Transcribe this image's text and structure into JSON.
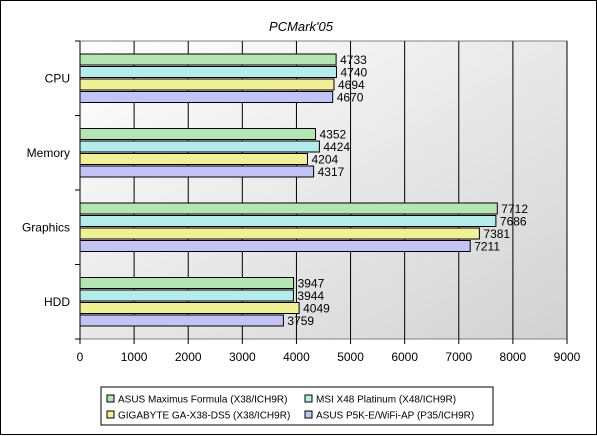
{
  "chart_data": {
    "type": "bar",
    "orientation": "horizontal",
    "title": "PCMark'05",
    "xlabel": "",
    "ylabel": "",
    "categories": [
      "CPU",
      "Memory",
      "Graphics",
      "HDD"
    ],
    "xlim": [
      0,
      9000
    ],
    "ticks": [
      0,
      1000,
      2000,
      3000,
      4000,
      5000,
      6000,
      7000,
      8000,
      9000
    ],
    "grid": true,
    "legend_position": "bottom",
    "series": [
      {
        "name": "ASUS Maximus Formula (X38/ICH9R)",
        "color": "#b4e6b4",
        "values": [
          4733,
          4352,
          7712,
          3947
        ]
      },
      {
        "name": "MSI X48 Platinum (X48/ICH9R)",
        "color": "#b4ebeb",
        "values": [
          4740,
          4424,
          7686,
          3944
        ]
      },
      {
        "name": "GIGABYTE GA-X38-DS5 (X38/ICH9R)",
        "color": "#f0f096",
        "values": [
          4694,
          4204,
          7381,
          4049
        ]
      },
      {
        "name": "ASUS P5K-E/WiFi-AP (P35/ICH9R)",
        "color": "#c3c3f5",
        "values": [
          4670,
          4317,
          7211,
          3759
        ]
      }
    ]
  }
}
